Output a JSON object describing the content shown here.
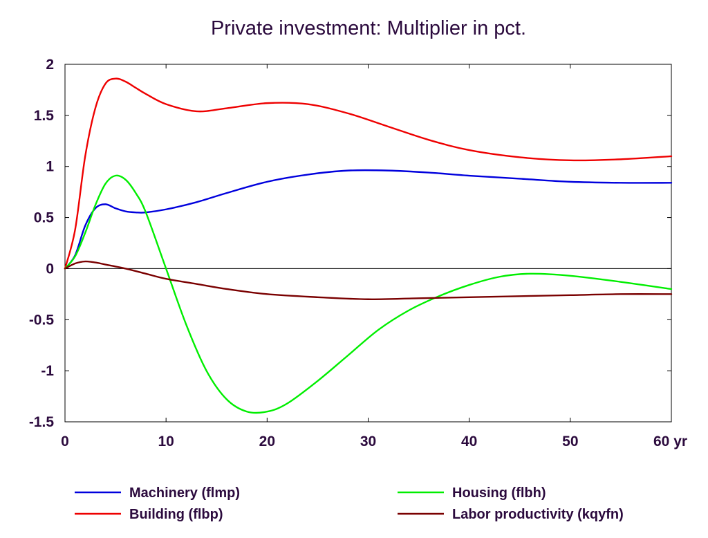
{
  "chart_data": {
    "type": "line",
    "title": "Private investment: Multiplier in pct.",
    "x_unit": "yr",
    "xlim": [
      0,
      60
    ],
    "ylim": [
      -1.5,
      2
    ],
    "x_ticks": [
      "0",
      "10",
      "20",
      "30",
      "40",
      "50",
      "60 yr"
    ],
    "y_ticks": [
      "2",
      "1.5",
      "1",
      "0.5",
      "0",
      "-0.5",
      "-1",
      "-1.5"
    ],
    "zero_line": true,
    "grid": false,
    "legend_position": "bottom",
    "series": [
      {
        "name": "Machinery (flmp)",
        "color": "#0000dd",
        "x": [
          0,
          1,
          2,
          3,
          4,
          5,
          6,
          7,
          8,
          10,
          13,
          16,
          20,
          24,
          28,
          32,
          36,
          40,
          45,
          50,
          55,
          60
        ],
        "y": [
          0,
          0.13,
          0.42,
          0.59,
          0.63,
          0.59,
          0.56,
          0.55,
          0.55,
          0.58,
          0.65,
          0.74,
          0.85,
          0.92,
          0.96,
          0.96,
          0.94,
          0.91,
          0.88,
          0.85,
          0.84,
          0.84
        ]
      },
      {
        "name": "Building (flbp)",
        "color": "#ee0000",
        "x": [
          0,
          1,
          2,
          3,
          4,
          5,
          6,
          7,
          8,
          10,
          13,
          16,
          20,
          24,
          28,
          32,
          36,
          40,
          45,
          50,
          55,
          60
        ],
        "y": [
          0,
          0.38,
          1.1,
          1.57,
          1.81,
          1.86,
          1.83,
          1.77,
          1.71,
          1.61,
          1.54,
          1.57,
          1.62,
          1.61,
          1.52,
          1.39,
          1.26,
          1.16,
          1.09,
          1.06,
          1.07,
          1.1
        ]
      },
      {
        "name": "Housing (flbh)",
        "color": "#00ee00",
        "x": [
          0,
          1,
          2,
          3,
          4,
          5,
          6,
          7,
          8,
          10,
          12,
          14,
          16,
          18,
          20,
          22,
          25,
          28,
          31,
          34,
          37,
          40,
          43,
          46,
          50,
          55,
          60
        ],
        "y": [
          0,
          0.12,
          0.35,
          0.62,
          0.83,
          0.91,
          0.87,
          0.74,
          0.55,
          0.0,
          -0.55,
          -1.0,
          -1.28,
          -1.4,
          -1.4,
          -1.32,
          -1.1,
          -0.85,
          -0.6,
          -0.41,
          -0.27,
          -0.16,
          -0.08,
          -0.05,
          -0.07,
          -0.13,
          -0.2
        ]
      },
      {
        "name": "Labor productivity (kqyfn)",
        "color": "#7a0000",
        "x": [
          0,
          1,
          2,
          3,
          4,
          6,
          8,
          10,
          13,
          16,
          20,
          25,
          30,
          35,
          40,
          45,
          50,
          55,
          60
        ],
        "y": [
          0,
          0.05,
          0.07,
          0.06,
          0.04,
          0.0,
          -0.05,
          -0.1,
          -0.15,
          -0.2,
          -0.25,
          -0.28,
          -0.3,
          -0.29,
          -0.28,
          -0.27,
          -0.26,
          -0.25,
          -0.25
        ]
      }
    ]
  }
}
